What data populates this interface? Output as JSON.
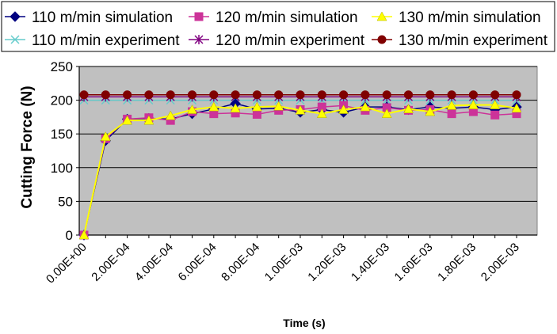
{
  "chart_data": {
    "type": "line",
    "title": "",
    "xlabel": "Time (s)",
    "ylabel": "Cutting Force (N)",
    "ylim": [
      0,
      250
    ],
    "yticks": [
      0,
      50,
      100,
      150,
      200,
      250
    ],
    "x_tick_labels": [
      "0.00E+00",
      "2.00E-04",
      "4.00E-04",
      "6.00E-04",
      "8.00E-04",
      "1.00E-03",
      "1.20E-03",
      "1.40E-03",
      "1.60E-03",
      "1.80E-03",
      "2.00E-03"
    ],
    "x": [
      0,
      0.0001,
      0.0002,
      0.0003,
      0.0004,
      0.0005,
      0.0006,
      0.0007,
      0.0008,
      0.0009,
      0.001,
      0.0011,
      0.0012,
      0.0013,
      0.0014,
      0.0015,
      0.0016,
      0.0017,
      0.0018,
      0.0019,
      0.002
    ],
    "grid": true,
    "plot_background": "#c0c0c0",
    "legend_position": "top",
    "series": [
      {
        "name": "110 m/min simulation",
        "color": "#000080",
        "marker": "diamond",
        "values": [
          0,
          140,
          172,
          173,
          172,
          180,
          187,
          195,
          187,
          188,
          182,
          186,
          182,
          190,
          190,
          186,
          190,
          188,
          190,
          186,
          190
        ]
      },
      {
        "name": "120 m/min simulation",
        "color": "#cc3399",
        "marker": "square",
        "values": [
          0,
          143,
          172,
          174,
          170,
          183,
          180,
          181,
          179,
          185,
          186,
          190,
          192,
          185,
          189,
          185,
          186,
          180,
          183,
          178,
          180
        ]
      },
      {
        "name": "130 m/min simulation",
        "color": "#ffff00",
        "marker": "triangle",
        "values": [
          0,
          146,
          170,
          170,
          177,
          186,
          190,
          188,
          190,
          191,
          185,
          180,
          186,
          190,
          180,
          187,
          183,
          192,
          193,
          193,
          188
        ]
      },
      {
        "name": "110 m/min experiment",
        "color": "#66cccc",
        "marker": "x",
        "values": [
          200,
          200,
          200,
          200,
          200,
          200,
          200,
          200,
          200,
          200,
          200,
          200,
          200,
          200,
          200,
          200,
          200,
          200,
          200,
          200,
          200
        ]
      },
      {
        "name": "120 m/min experiment",
        "color": "#800080",
        "marker": "star",
        "values": [
          205,
          205,
          205,
          205,
          205,
          205,
          205,
          205,
          205,
          205,
          205,
          205,
          205,
          205,
          205,
          205,
          205,
          205,
          205,
          205,
          205
        ]
      },
      {
        "name": "130 m/min experiment",
        "color": "#800000",
        "marker": "circle",
        "values": [
          208,
          208,
          208,
          208,
          208,
          208,
          208,
          208,
          208,
          208,
          208,
          208,
          208,
          208,
          208,
          208,
          208,
          208,
          208,
          208,
          208
        ]
      }
    ]
  }
}
